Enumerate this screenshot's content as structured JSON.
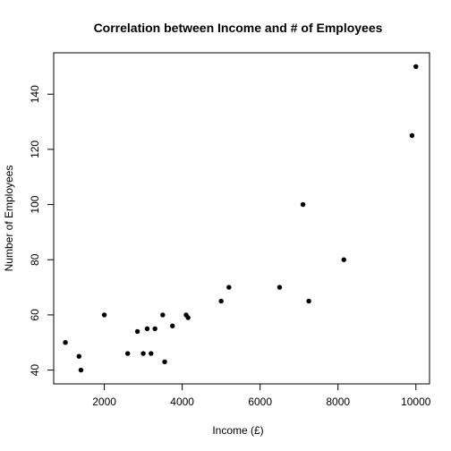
{
  "chart_data": {
    "type": "scatter",
    "title": "Correlation between Income and # of Employees",
    "xlabel": "Income (£)",
    "ylabel": "Number of Employees",
    "xlim": [
      700,
      10350
    ],
    "ylim": [
      35,
      155
    ],
    "x_ticks": [
      2000,
      4000,
      6000,
      8000,
      10000
    ],
    "x_tick_labels": [
      "2000",
      "4000",
      "6000",
      "8000",
      "10000"
    ],
    "y_ticks": [
      40,
      60,
      80,
      100,
      120,
      140
    ],
    "y_tick_labels": [
      "40",
      "60",
      "80",
      "100",
      "120",
      "140"
    ],
    "grid": false,
    "marker_color": "#000000",
    "points": [
      {
        "x": 1000,
        "y": 50
      },
      {
        "x": 1350,
        "y": 45
      },
      {
        "x": 1400,
        "y": 40
      },
      {
        "x": 2000,
        "y": 60
      },
      {
        "x": 2600,
        "y": 46
      },
      {
        "x": 2850,
        "y": 54
      },
      {
        "x": 3000,
        "y": 46
      },
      {
        "x": 3100,
        "y": 55
      },
      {
        "x": 3200,
        "y": 46
      },
      {
        "x": 3300,
        "y": 55
      },
      {
        "x": 3500,
        "y": 60
      },
      {
        "x": 3550,
        "y": 43
      },
      {
        "x": 3750,
        "y": 56
      },
      {
        "x": 4100,
        "y": 60
      },
      {
        "x": 4150,
        "y": 59
      },
      {
        "x": 5000,
        "y": 65
      },
      {
        "x": 5200,
        "y": 70
      },
      {
        "x": 6500,
        "y": 70
      },
      {
        "x": 7100,
        "y": 100
      },
      {
        "x": 7250,
        "y": 65
      },
      {
        "x": 8150,
        "y": 80
      },
      {
        "x": 9900,
        "y": 125
      },
      {
        "x": 10000,
        "y": 150
      }
    ]
  }
}
